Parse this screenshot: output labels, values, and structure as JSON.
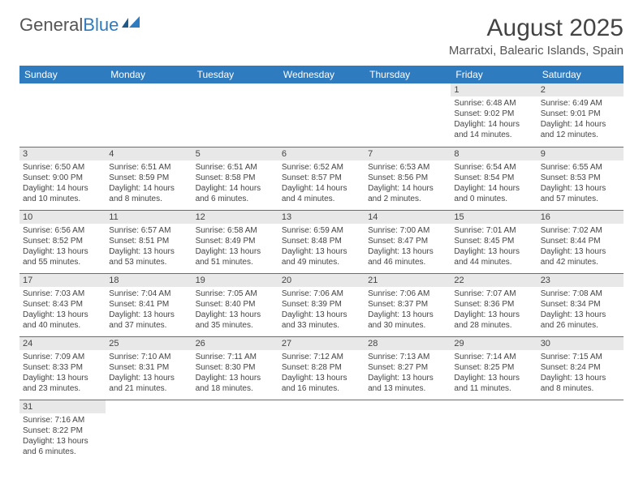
{
  "logo": {
    "first": "General",
    "second": "Blue"
  },
  "title": "August 2025",
  "location": "Marratxi, Balearic Islands, Spain",
  "colors": {
    "header_bg": "#2f7bbf",
    "header_text": "#ffffff",
    "daynum_bg": "#e8e8e8",
    "text": "#444444",
    "border": "#2f7bbf",
    "logo_blue": "#2f7bbf"
  },
  "day_names": [
    "Sunday",
    "Monday",
    "Tuesday",
    "Wednesday",
    "Thursday",
    "Friday",
    "Saturday"
  ],
  "weeks": [
    [
      null,
      null,
      null,
      null,
      null,
      {
        "n": "1",
        "sr": "Sunrise: 6:48 AM",
        "ss": "Sunset: 9:02 PM",
        "dl": "Daylight: 14 hours and 14 minutes."
      },
      {
        "n": "2",
        "sr": "Sunrise: 6:49 AM",
        "ss": "Sunset: 9:01 PM",
        "dl": "Daylight: 14 hours and 12 minutes."
      }
    ],
    [
      {
        "n": "3",
        "sr": "Sunrise: 6:50 AM",
        "ss": "Sunset: 9:00 PM",
        "dl": "Daylight: 14 hours and 10 minutes."
      },
      {
        "n": "4",
        "sr": "Sunrise: 6:51 AM",
        "ss": "Sunset: 8:59 PM",
        "dl": "Daylight: 14 hours and 8 minutes."
      },
      {
        "n": "5",
        "sr": "Sunrise: 6:51 AM",
        "ss": "Sunset: 8:58 PM",
        "dl": "Daylight: 14 hours and 6 minutes."
      },
      {
        "n": "6",
        "sr": "Sunrise: 6:52 AM",
        "ss": "Sunset: 8:57 PM",
        "dl": "Daylight: 14 hours and 4 minutes."
      },
      {
        "n": "7",
        "sr": "Sunrise: 6:53 AM",
        "ss": "Sunset: 8:56 PM",
        "dl": "Daylight: 14 hours and 2 minutes."
      },
      {
        "n": "8",
        "sr": "Sunrise: 6:54 AM",
        "ss": "Sunset: 8:54 PM",
        "dl": "Daylight: 14 hours and 0 minutes."
      },
      {
        "n": "9",
        "sr": "Sunrise: 6:55 AM",
        "ss": "Sunset: 8:53 PM",
        "dl": "Daylight: 13 hours and 57 minutes."
      }
    ],
    [
      {
        "n": "10",
        "sr": "Sunrise: 6:56 AM",
        "ss": "Sunset: 8:52 PM",
        "dl": "Daylight: 13 hours and 55 minutes."
      },
      {
        "n": "11",
        "sr": "Sunrise: 6:57 AM",
        "ss": "Sunset: 8:51 PM",
        "dl": "Daylight: 13 hours and 53 minutes."
      },
      {
        "n": "12",
        "sr": "Sunrise: 6:58 AM",
        "ss": "Sunset: 8:49 PM",
        "dl": "Daylight: 13 hours and 51 minutes."
      },
      {
        "n": "13",
        "sr": "Sunrise: 6:59 AM",
        "ss": "Sunset: 8:48 PM",
        "dl": "Daylight: 13 hours and 49 minutes."
      },
      {
        "n": "14",
        "sr": "Sunrise: 7:00 AM",
        "ss": "Sunset: 8:47 PM",
        "dl": "Daylight: 13 hours and 46 minutes."
      },
      {
        "n": "15",
        "sr": "Sunrise: 7:01 AM",
        "ss": "Sunset: 8:45 PM",
        "dl": "Daylight: 13 hours and 44 minutes."
      },
      {
        "n": "16",
        "sr": "Sunrise: 7:02 AM",
        "ss": "Sunset: 8:44 PM",
        "dl": "Daylight: 13 hours and 42 minutes."
      }
    ],
    [
      {
        "n": "17",
        "sr": "Sunrise: 7:03 AM",
        "ss": "Sunset: 8:43 PM",
        "dl": "Daylight: 13 hours and 40 minutes."
      },
      {
        "n": "18",
        "sr": "Sunrise: 7:04 AM",
        "ss": "Sunset: 8:41 PM",
        "dl": "Daylight: 13 hours and 37 minutes."
      },
      {
        "n": "19",
        "sr": "Sunrise: 7:05 AM",
        "ss": "Sunset: 8:40 PM",
        "dl": "Daylight: 13 hours and 35 minutes."
      },
      {
        "n": "20",
        "sr": "Sunrise: 7:06 AM",
        "ss": "Sunset: 8:39 PM",
        "dl": "Daylight: 13 hours and 33 minutes."
      },
      {
        "n": "21",
        "sr": "Sunrise: 7:06 AM",
        "ss": "Sunset: 8:37 PM",
        "dl": "Daylight: 13 hours and 30 minutes."
      },
      {
        "n": "22",
        "sr": "Sunrise: 7:07 AM",
        "ss": "Sunset: 8:36 PM",
        "dl": "Daylight: 13 hours and 28 minutes."
      },
      {
        "n": "23",
        "sr": "Sunrise: 7:08 AM",
        "ss": "Sunset: 8:34 PM",
        "dl": "Daylight: 13 hours and 26 minutes."
      }
    ],
    [
      {
        "n": "24",
        "sr": "Sunrise: 7:09 AM",
        "ss": "Sunset: 8:33 PM",
        "dl": "Daylight: 13 hours and 23 minutes."
      },
      {
        "n": "25",
        "sr": "Sunrise: 7:10 AM",
        "ss": "Sunset: 8:31 PM",
        "dl": "Daylight: 13 hours and 21 minutes."
      },
      {
        "n": "26",
        "sr": "Sunrise: 7:11 AM",
        "ss": "Sunset: 8:30 PM",
        "dl": "Daylight: 13 hours and 18 minutes."
      },
      {
        "n": "27",
        "sr": "Sunrise: 7:12 AM",
        "ss": "Sunset: 8:28 PM",
        "dl": "Daylight: 13 hours and 16 minutes."
      },
      {
        "n": "28",
        "sr": "Sunrise: 7:13 AM",
        "ss": "Sunset: 8:27 PM",
        "dl": "Daylight: 13 hours and 13 minutes."
      },
      {
        "n": "29",
        "sr": "Sunrise: 7:14 AM",
        "ss": "Sunset: 8:25 PM",
        "dl": "Daylight: 13 hours and 11 minutes."
      },
      {
        "n": "30",
        "sr": "Sunrise: 7:15 AM",
        "ss": "Sunset: 8:24 PM",
        "dl": "Daylight: 13 hours and 8 minutes."
      }
    ],
    [
      {
        "n": "31",
        "sr": "Sunrise: 7:16 AM",
        "ss": "Sunset: 8:22 PM",
        "dl": "Daylight: 13 hours and 6 minutes."
      },
      null,
      null,
      null,
      null,
      null,
      null
    ]
  ]
}
